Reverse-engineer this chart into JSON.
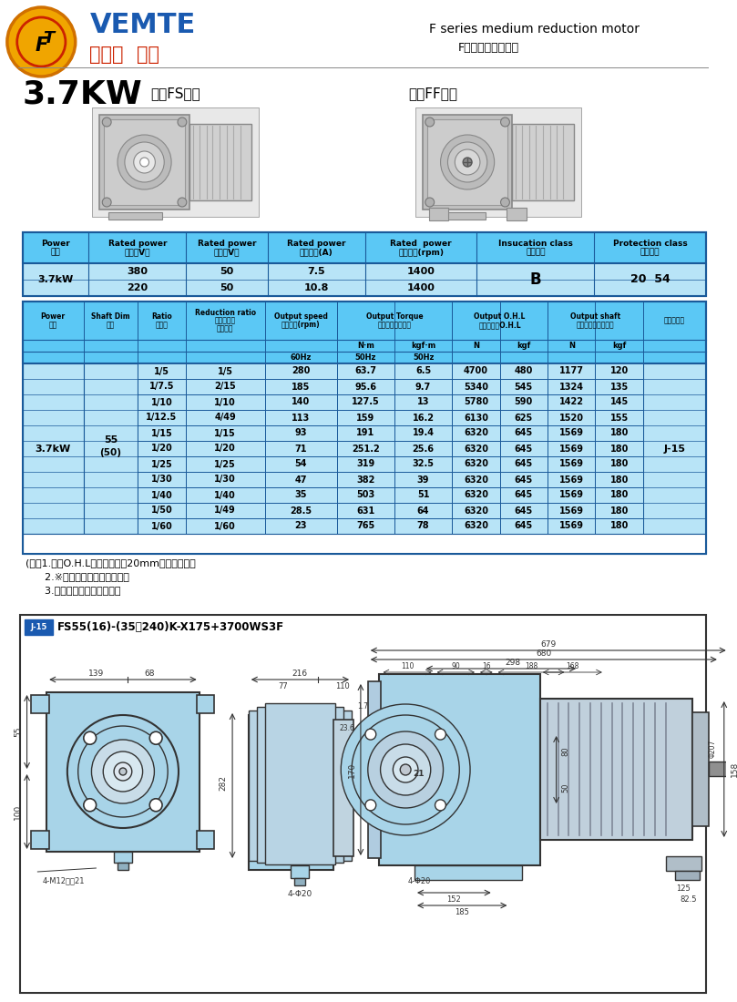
{
  "title_power": "3.7KW",
  "subtitle_left": "中空FS系列",
  "subtitle_right": "中實FF系列",
  "header_right_line1": "F series medium reduction motor",
  "header_right_line2": "F系列中型減速電機",
  "brand_name": "VEMTE",
  "brand_sub": "減速機 電機",
  "note_lines": [
    "(注）1.容許O.H.L為輸出軸端面20mm位置的數值。",
    "      2.※標記為轉矩力變限機型。",
    "      3.括號（）為實心軸軸徑。"
  ],
  "drawing_label_tag": "J-15",
  "drawing_label_rest": "FS55(16)-(35～240)K-X175+3700WS3F",
  "power_table_headers": [
    "Power\n功率",
    "Rated power\n電壓（V）",
    "Rated power\n頻率（V）",
    "Rated power\n額定電流(A)",
    "Rated  power\n額定轉速(rpm)",
    "Insucation class\n絕緣等級",
    "Protection class\n防護等級"
  ],
  "power_row1": [
    "3.7kW",
    "380",
    "50",
    "7.5",
    "1400",
    "B",
    "20  54"
  ],
  "power_row2": [
    "",
    "220",
    "50",
    "10.8",
    "1400",
    "",
    ""
  ],
  "main_data": [
    [
      "1/5",
      "1/5",
      "280",
      "63.7",
      "6.5",
      "4700",
      "480",
      "1177",
      "120"
    ],
    [
      "1/7.5",
      "2/15",
      "185",
      "95.6",
      "9.7",
      "5340",
      "545",
      "1324",
      "135"
    ],
    [
      "1/10",
      "1/10",
      "140",
      "127.5",
      "13",
      "5780",
      "590",
      "1422",
      "145"
    ],
    [
      "1/12.5",
      "4/49",
      "113",
      "159",
      "16.2",
      "6130",
      "625",
      "1520",
      "155"
    ],
    [
      "1/15",
      "1/15",
      "93",
      "191",
      "19.4",
      "6320",
      "645",
      "1569",
      "180"
    ],
    [
      "1/20",
      "1/20",
      "71",
      "251.2",
      "25.6",
      "6320",
      "645",
      "1569",
      "180"
    ],
    [
      "1/25",
      "1/25",
      "54",
      "319",
      "32.5",
      "6320",
      "645",
      "1569",
      "180"
    ],
    [
      "1/30",
      "1/30",
      "47",
      "382",
      "39",
      "6320",
      "645",
      "1569",
      "180"
    ],
    [
      "1/40",
      "1/40",
      "35",
      "503",
      "51",
      "6320",
      "645",
      "1569",
      "180"
    ],
    [
      "1/50",
      "1/49",
      "28.5",
      "631",
      "64",
      "6320",
      "645",
      "1569",
      "180"
    ],
    [
      "1/60",
      "1/60",
      "23",
      "765",
      "78",
      "6320",
      "645",
      "1569",
      "180"
    ]
  ],
  "bg_color": "#ffffff",
  "hdr_bg": "#5bc8f5",
  "row_bg": "#b8e4f7",
  "tbl_border": "#1a5a9a",
  "dim_color": "#333333",
  "part_face": "#a8d4e8",
  "part_edge": "#333333"
}
